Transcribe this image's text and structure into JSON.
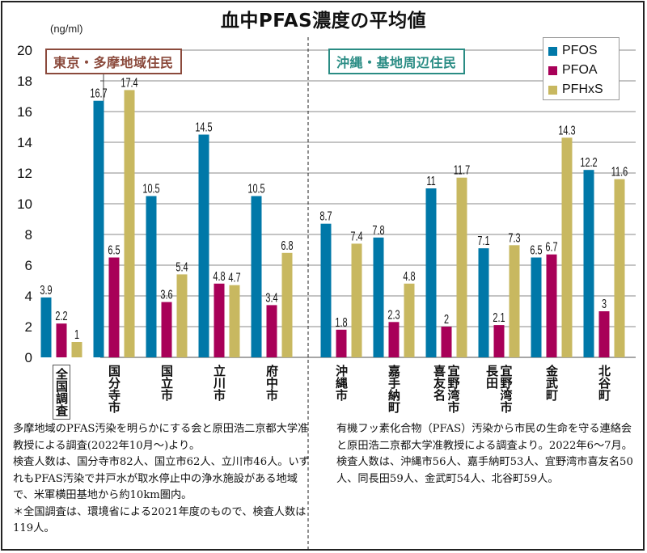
{
  "title": "血中PFAS濃度の平均値",
  "unit_label": "(ng/ml)",
  "regions": {
    "tokyo": "東京・多摩地域住民",
    "okinawa": "沖縄・基地周辺住民"
  },
  "legend": [
    {
      "name": "PFOS",
      "color": "#0078a8"
    },
    {
      "name": "PFOA",
      "color": "#a80058"
    },
    {
      "name": "PFHxS",
      "color": "#c8b860"
    }
  ],
  "chart_data": {
    "type": "bar",
    "title": "血中PFAS濃度の平均値",
    "ylabel": "(ng/ml)",
    "xlabel": "",
    "ylim": [
      0,
      20
    ],
    "yticks": [
      0,
      2,
      4,
      6,
      8,
      10,
      12,
      14,
      16,
      18,
      20
    ],
    "grid": true,
    "legend_position": "top-right",
    "groups": [
      {
        "name": "東京・多摩地域住民",
        "categories": [
          "全国調査",
          "国分寺市",
          "国立市",
          "立川市",
          "府中市"
        ]
      },
      {
        "name": "沖縄・基地周辺住民",
        "categories": [
          "沖縄市",
          "嘉手納町",
          "宜野湾市喜友名",
          "宜野湾市長田",
          "金武町",
          "北谷町"
        ]
      }
    ],
    "categories": [
      "全国調査",
      "国分寺市",
      "国立市",
      "立川市",
      "府中市",
      "沖縄市",
      "嘉手納町",
      "宜野湾市喜友名",
      "宜野湾市長田",
      "金武町",
      "北谷町"
    ],
    "category_display": [
      {
        "main": "全国調査",
        "boxed": true
      },
      {
        "main": "国分寺市"
      },
      {
        "main": "国立市"
      },
      {
        "main": "立川市"
      },
      {
        "main": "府中市"
      },
      {
        "main": "沖縄市"
      },
      {
        "main": "嘉手納町"
      },
      {
        "main": "宜野湾市",
        "sub": "喜友名"
      },
      {
        "main": "宜野湾市",
        "sub": "長田"
      },
      {
        "main": "金武町"
      },
      {
        "main": "北谷町"
      }
    ],
    "series": [
      {
        "name": "PFOS",
        "color": "#0078a8",
        "values": [
          3.9,
          16.7,
          10.5,
          14.5,
          10.5,
          8.7,
          7.8,
          11,
          7.1,
          6.5,
          12.2
        ]
      },
      {
        "name": "PFOA",
        "color": "#a80058",
        "values": [
          2.2,
          6.5,
          3.6,
          4.8,
          3.4,
          1.8,
          2.3,
          2,
          2.1,
          6.7,
          3
        ]
      },
      {
        "name": "PFHxS",
        "color": "#c8b860",
        "values": [
          1,
          17.4,
          5.4,
          4.7,
          6.8,
          7.4,
          4.8,
          11.7,
          7.3,
          14.3,
          11.6
        ]
      }
    ]
  },
  "notes": {
    "left": "多摩地域のPFAS汚染を明らかにする会と原田浩二京都大学准教授による調査(2022年10月〜)より。\n検査人数は、国分寺市82人、国立市62人、立川市46人。いずれもPFAS汚染で井戸水が取水停止中の浄水施設がある地域で、米軍横田基地から約10km圏内。\n＊全国調査は、環境省による2021年度のもので、検査人数は119人。",
    "right": "有機フッ素化合物（PFAS）汚染から市民の生命を守る連絡会と原田浩二京都大学准教授による調査より。2022年6〜7月。\n検査人数は、沖縄市56人、嘉手納町53人、宜野湾市喜友名50人、同長田59人、金武町54人、北谷町59人。"
  }
}
